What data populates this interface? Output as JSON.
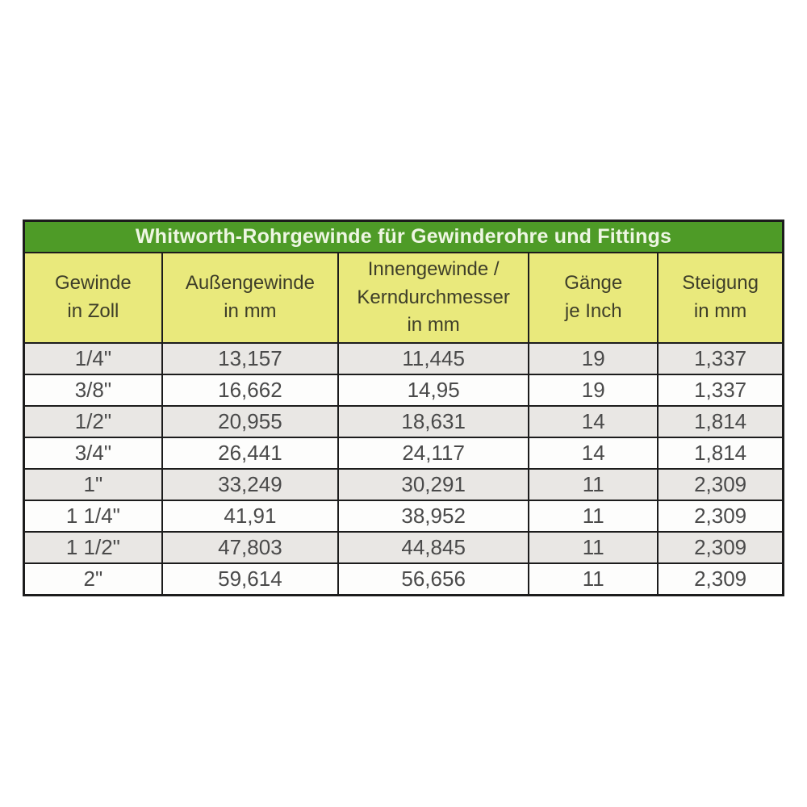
{
  "chart_data": {
    "type": "table",
    "title": "Whitworth-Rohrgewinde für Gewinderohre und Fittings",
    "columns": [
      "Gewinde\nin Zoll",
      "Außengewinde\nin mm",
      "Innengewinde /\nKerndurchmesser\nin mm",
      "Gänge\nje Inch",
      "Steigung\nin mm"
    ],
    "rows": [
      [
        "1/4\"",
        "13,157",
        "11,445",
        "19",
        "1,337"
      ],
      [
        "3/8\"",
        "16,662",
        "14,95",
        "19",
        "1,337"
      ],
      [
        "1/2\"",
        "20,955",
        "18,631",
        "14",
        "1,814"
      ],
      [
        "3/4\"",
        "26,441",
        "24,117",
        "14",
        "1,814"
      ],
      [
        "1\"",
        "33,249",
        "30,291",
        "11",
        "2,309"
      ],
      [
        "1 1/4\"",
        "41,91",
        "38,952",
        "11",
        "2,309"
      ],
      [
        "1 1/2\"",
        "47,803",
        "44,845",
        "11",
        "2,309"
      ],
      [
        "2\"",
        "59,614",
        "56,656",
        "11",
        "2,309"
      ]
    ],
    "colors": {
      "title_bg": "#4e9b27",
      "title_text": "#eef6e3",
      "header_bg": "#e9e97c",
      "header_text": "#3e3e29",
      "row_alt_bg": "#e9e7e4",
      "row_bg": "#fdfdfc",
      "cell_text": "#4a4a4a",
      "border": "#1c1c1c"
    }
  }
}
